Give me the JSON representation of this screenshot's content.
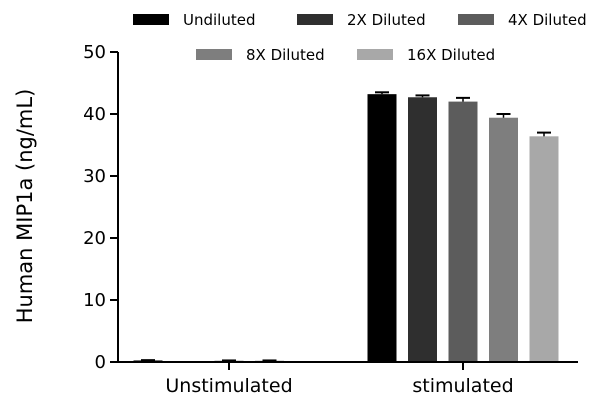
{
  "chart_data": {
    "type": "bar",
    "title": "",
    "xlabel": "",
    "ylabel": "Human MIP1a (ng/mL)",
    "ylim": [
      0,
      50
    ],
    "yticks": [
      "0",
      "10",
      "20",
      "30",
      "40",
      "50"
    ],
    "categories": [
      "Unstimulated",
      "stimulated"
    ],
    "legend_position": "top",
    "grid": false,
    "series": [
      {
        "name": "Undiluted",
        "color": "#000000",
        "values": [
          0.25,
          43.2
        ],
        "errors": [
          0.05,
          0.3
        ]
      },
      {
        "name": "2X Diluted",
        "color": "#2f2f2f",
        "values": [
          0.0,
          42.7
        ],
        "errors": [
          0.0,
          0.3
        ]
      },
      {
        "name": "4X Diluted",
        "color": "#5c5c5c",
        "values": [
          0.2,
          42.0
        ],
        "errors": [
          0.05,
          0.6
        ]
      },
      {
        "name": "8X Diluted",
        "color": "#7e7e7e",
        "values": [
          0.2,
          39.4
        ],
        "errors": [
          0.05,
          0.6
        ]
      },
      {
        "name": "16X Diluted",
        "color": "#a8a8a8",
        "values": [
          0.0,
          36.4
        ],
        "errors": [
          0.0,
          0.6
        ]
      }
    ]
  }
}
